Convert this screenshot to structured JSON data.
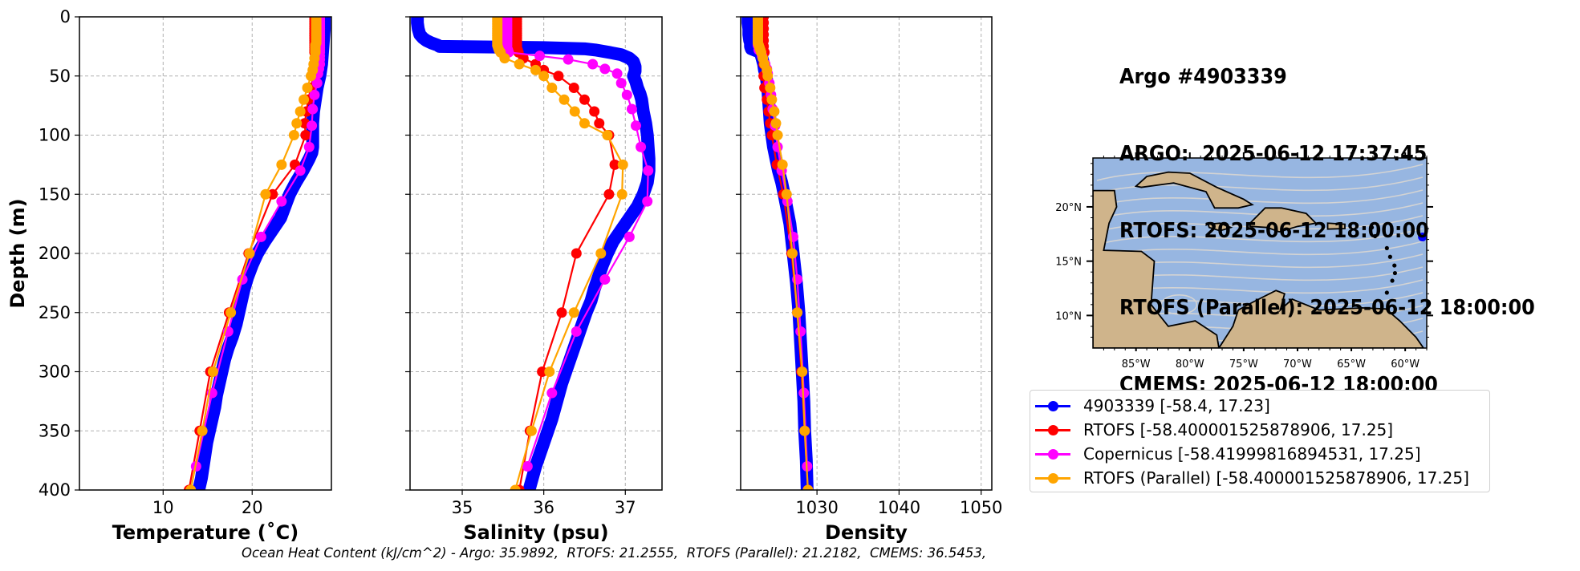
{
  "header": {
    "lines": [
      "Argo #4903339",
      "ARGO:  2025-06-12 17:37:45",
      "RTOFS: 2025-06-12 18:00:00",
      "RTOFS (Parallel): 2025-06-12 18:00:00",
      "CMEMS: 2025-06-12 18:00:00"
    ]
  },
  "footer": {
    "ohc_text": "Ocean Heat Content (kJ/cm^2) - Argo: 35.9892,  RTOFS: 21.2555,  RTOFS (Parallel): 21.2182,  CMEMS: 36.5453,"
  },
  "legend": {
    "items": [
      {
        "label": "4903339 [-58.4, 17.23]",
        "color": "#0000ff"
      },
      {
        "label": "RTOFS [-58.400001525878906, 17.25]",
        "color": "#ff0000"
      },
      {
        "label": "Copernicus [-58.41999816894531, 17.25]",
        "color": "#ff00ff"
      },
      {
        "label": "RTOFS (Parallel) [-58.400001525878906, 17.25]",
        "color": "#ffa500"
      }
    ]
  },
  "map": {
    "lat_ticks": [
      "20°N",
      "15°N",
      "10°N"
    ],
    "lat_values": [
      20,
      15,
      10
    ],
    "lon_ticks": [
      "85°W",
      "80°W",
      "75°W",
      "70°W",
      "65°W",
      "60°W"
    ],
    "lon_values": [
      -85,
      -80,
      -75,
      -70,
      -65,
      -60
    ],
    "lon_range": [
      -89,
      -58
    ],
    "lat_range": [
      7,
      24.5
    ],
    "float_position": {
      "lon": -58.4,
      "lat": 17.23
    },
    "colors": {
      "ocean": "#97b6e1",
      "land": "#cfb48b",
      "stream": "#d3d3d3",
      "float": "#0000ff"
    }
  },
  "chart_data": [
    {
      "type": "line",
      "id": "temperature",
      "title": "",
      "xlabel": "Temperature (˚C)",
      "ylabel": "Depth (m)",
      "xlim": [
        0.6,
        28.9
      ],
      "ylim": [
        400,
        0
      ],
      "xticks": [
        10,
        20
      ],
      "yticks": [
        0,
        50,
        100,
        150,
        200,
        250,
        300,
        350,
        400
      ],
      "grid": true,
      "series": [
        {
          "name": "4903339",
          "color": "#0000ff",
          "dense": true,
          "depth": [
            0,
            10,
            20,
            30,
            40,
            50,
            60,
            70,
            80,
            90,
            100,
            110,
            115,
            120,
            130,
            140,
            150,
            160,
            170,
            180,
            190,
            200,
            210,
            220,
            230,
            240,
            250,
            260,
            270,
            280,
            290,
            300,
            310,
            320,
            330,
            340,
            350,
            360,
            370,
            380,
            390,
            400
          ],
          "values": [
            28.1,
            28.1,
            28.0,
            27.9,
            27.8,
            27.6,
            27.3,
            27.1,
            26.9,
            26.8,
            26.8,
            26.8,
            26.7,
            26.4,
            25.7,
            24.9,
            24.2,
            23.7,
            23.2,
            22.3,
            21.4,
            20.6,
            20.0,
            19.5,
            19.1,
            18.8,
            18.5,
            18.2,
            17.8,
            17.3,
            16.9,
            16.6,
            16.3,
            16.0,
            15.8,
            15.5,
            15.2,
            14.9,
            14.7,
            14.5,
            14.3,
            14.0
          ]
        },
        {
          "name": "RTOFS",
          "color": "#ff0000",
          "depth": [
            0,
            2,
            4,
            6,
            8,
            10,
            12,
            14,
            16,
            18,
            20,
            22,
            24,
            26,
            28,
            30,
            35,
            40,
            45,
            50,
            60,
            70,
            80,
            90,
            100,
            125,
            150,
            200,
            250,
            300,
            350,
            400
          ],
          "values": [
            27.0,
            27.0,
            27.0,
            27.0,
            27.0,
            27.0,
            27.0,
            27.0,
            27.0,
            27.0,
            27.0,
            27.0,
            27.0,
            27.0,
            27.0,
            27.0,
            27.1,
            27.1,
            27.0,
            26.9,
            26.6,
            26.3,
            26.1,
            25.9,
            26.0,
            24.8,
            22.3,
            19.6,
            17.4,
            15.3,
            14.1,
            12.9
          ]
        },
        {
          "name": "Copernicus",
          "color": "#ff00ff",
          "depth": [
            0,
            2,
            4,
            6,
            8,
            10,
            12,
            14,
            16,
            18,
            20,
            22,
            24,
            26,
            28,
            30,
            33,
            36,
            40,
            44,
            48,
            56,
            66,
            78,
            92,
            110,
            130,
            156,
            186,
            222,
            266,
            318,
            380
          ],
          "values": [
            27.6,
            27.6,
            27.6,
            27.6,
            27.6,
            27.6,
            27.6,
            27.6,
            27.6,
            27.6,
            27.6,
            27.6,
            27.6,
            27.6,
            27.6,
            27.6,
            27.6,
            27.6,
            27.6,
            27.5,
            27.4,
            27.3,
            27.0,
            26.8,
            26.7,
            26.4,
            25.4,
            23.3,
            21.0,
            18.9,
            17.3,
            15.5,
            13.7
          ]
        },
        {
          "name": "RTOFS (Parallel)",
          "color": "#ffa500",
          "depth": [
            0,
            2,
            4,
            6,
            8,
            10,
            12,
            14,
            16,
            18,
            20,
            22,
            24,
            26,
            28,
            30,
            35,
            40,
            45,
            50,
            60,
            70,
            80,
            90,
            100,
            125,
            150,
            200,
            250,
            300,
            350,
            400
          ],
          "values": [
            27.2,
            27.2,
            27.2,
            27.2,
            27.2,
            27.2,
            27.2,
            27.2,
            27.2,
            27.2,
            27.2,
            27.2,
            27.1,
            27.1,
            27.1,
            27.1,
            27.0,
            26.9,
            26.8,
            26.6,
            26.2,
            25.8,
            25.4,
            25.0,
            24.7,
            23.3,
            21.5,
            19.7,
            17.6,
            15.6,
            14.4,
            13.1
          ]
        }
      ]
    },
    {
      "type": "line",
      "id": "salinity",
      "title": "",
      "xlabel": "Salinity (psu)",
      "ylabel": "",
      "xlim": [
        34.36,
        37.45
      ],
      "ylim": [
        400,
        0
      ],
      "xticks": [
        35,
        36,
        37
      ],
      "yticks": [
        0,
        50,
        100,
        150,
        200,
        250,
        300,
        350,
        400
      ],
      "grid": true,
      "series": [
        {
          "name": "4903339",
          "color": "#0000ff",
          "dense": true,
          "depth": [
            0,
            5,
            10,
            15,
            18,
            20,
            22,
            24,
            25,
            26,
            27,
            28,
            30,
            32,
            35,
            38,
            42,
            46,
            50,
            55,
            60,
            65,
            70,
            80,
            90,
            100,
            110,
            120,
            130,
            140,
            150,
            160,
            170,
            180,
            190,
            200,
            210,
            220,
            230,
            240,
            250,
            260,
            270,
            280,
            290,
            300,
            310,
            320,
            330,
            340,
            350,
            360,
            370,
            380,
            390,
            400
          ],
          "values": [
            34.45,
            34.45,
            34.46,
            34.48,
            34.52,
            34.56,
            34.62,
            34.7,
            34.72,
            36.0,
            36.5,
            36.63,
            36.8,
            36.95,
            37.05,
            37.1,
            37.12,
            37.12,
            37.1,
            37.13,
            37.15,
            37.18,
            37.2,
            37.22,
            37.25,
            37.27,
            37.28,
            37.29,
            37.29,
            37.27,
            37.22,
            37.15,
            37.05,
            36.95,
            36.85,
            36.78,
            36.72,
            36.67,
            36.62,
            36.58,
            36.52,
            36.47,
            36.42,
            36.37,
            36.32,
            36.27,
            36.22,
            36.18,
            36.14,
            36.1,
            36.05,
            36.0,
            35.95,
            35.9,
            35.86,
            35.82
          ]
        },
        {
          "name": "RTOFS",
          "color": "#ff0000",
          "depth": [
            0,
            2,
            4,
            6,
            8,
            10,
            12,
            14,
            16,
            18,
            20,
            22,
            24,
            26,
            28,
            30,
            35,
            40,
            45,
            50,
            60,
            70,
            80,
            90,
            100,
            125,
            150,
            200,
            250,
            300,
            350,
            400
          ],
          "values": [
            35.67,
            35.67,
            35.67,
            35.67,
            35.67,
            35.67,
            35.67,
            35.67,
            35.67,
            35.67,
            35.67,
            35.67,
            35.67,
            35.67,
            35.68,
            35.69,
            35.75,
            35.9,
            36.0,
            36.18,
            36.37,
            36.5,
            36.62,
            36.68,
            36.8,
            36.87,
            36.8,
            36.4,
            36.22,
            35.98,
            35.83,
            35.7
          ]
        },
        {
          "name": "Copernicus",
          "color": "#ff00ff",
          "depth": [
            0,
            2,
            4,
            6,
            8,
            10,
            12,
            14,
            16,
            18,
            20,
            22,
            24,
            26,
            28,
            30,
            33,
            36,
            40,
            44,
            48,
            56,
            66,
            78,
            92,
            110,
            130,
            156,
            186,
            222,
            266,
            318,
            380
          ],
          "values": [
            35.55,
            35.55,
            35.55,
            35.55,
            35.55,
            35.55,
            35.55,
            35.55,
            35.55,
            35.55,
            35.55,
            35.55,
            35.55,
            35.55,
            35.56,
            35.57,
            35.95,
            36.3,
            36.6,
            36.75,
            36.9,
            36.95,
            37.02,
            37.08,
            37.13,
            37.19,
            37.28,
            37.27,
            37.05,
            36.75,
            36.4,
            36.1,
            35.8
          ]
        },
        {
          "name": "RTOFS (Parallel)",
          "color": "#ffa500",
          "depth": [
            0,
            2,
            4,
            6,
            8,
            10,
            12,
            14,
            16,
            18,
            20,
            22,
            24,
            26,
            28,
            30,
            35,
            40,
            45,
            50,
            60,
            70,
            80,
            90,
            100,
            125,
            150,
            200,
            250,
            300,
            350,
            400
          ],
          "values": [
            35.43,
            35.43,
            35.43,
            35.43,
            35.43,
            35.43,
            35.43,
            35.43,
            35.43,
            35.43,
            35.43,
            35.43,
            35.43,
            35.44,
            35.45,
            35.47,
            35.52,
            35.7,
            35.9,
            36.0,
            36.1,
            36.25,
            36.38,
            36.5,
            36.78,
            36.97,
            36.96,
            36.7,
            36.37,
            36.07,
            35.85,
            35.65
          ]
        }
      ]
    },
    {
      "type": "line",
      "id": "density",
      "title": "",
      "xlabel": "Density",
      "ylabel": "",
      "xlim": [
        1020.7,
        1051.3
      ],
      "ylim": [
        400,
        0
      ],
      "xticks": [
        1030,
        1040,
        1050
      ],
      "yticks": [
        0,
        50,
        100,
        150,
        200,
        250,
        300,
        350,
        400
      ],
      "grid": true,
      "series": [
        {
          "name": "4903339",
          "color": "#0000ff",
          "dense": true,
          "depth": [
            0,
            5,
            10,
            15,
            20,
            22,
            25,
            27,
            30,
            35,
            40,
            45,
            50,
            60,
            70,
            80,
            90,
            100,
            110,
            120,
            130,
            140,
            150,
            175,
            200,
            225,
            250,
            275,
            300,
            325,
            350,
            375,
            400
          ],
          "values": [
            1021.6,
            1021.6,
            1021.7,
            1021.7,
            1021.8,
            1021.9,
            1021.9,
            1022.0,
            1023.1,
            1023.3,
            1023.5,
            1023.6,
            1023.8,
            1024.0,
            1024.1,
            1024.2,
            1024.3,
            1024.5,
            1024.7,
            1025.0,
            1025.3,
            1025.7,
            1026.0,
            1026.7,
            1027.1,
            1027.5,
            1027.8,
            1028.0,
            1028.2,
            1028.4,
            1028.5,
            1028.7,
            1028.8
          ]
        },
        {
          "name": "RTOFS",
          "color": "#ff0000",
          "depth": [
            0,
            5,
            10,
            15,
            20,
            25,
            30,
            40,
            50,
            60,
            70,
            80,
            90,
            100,
            125,
            150,
            200,
            250,
            300,
            350,
            400
          ],
          "values": [
            1023.5,
            1023.5,
            1023.5,
            1023.5,
            1023.5,
            1023.5,
            1023.6,
            1023.5,
            1023.5,
            1023.6,
            1023.9,
            1024.1,
            1024.3,
            1024.5,
            1025.1,
            1025.9,
            1026.9,
            1027.6,
            1028.1,
            1028.5,
            1028.9
          ]
        },
        {
          "name": "Copernicus",
          "color": "#ff00ff",
          "depth": [
            0,
            4,
            8,
            12,
            16,
            20,
            24,
            28,
            33,
            40,
            44,
            48,
            56,
            66,
            78,
            92,
            110,
            130,
            156,
            186,
            222,
            266,
            318,
            380
          ],
          "values": [
            1022.8,
            1022.8,
            1022.8,
            1022.8,
            1022.8,
            1022.8,
            1022.8,
            1022.9,
            1023.3,
            1023.7,
            1023.9,
            1024.0,
            1024.2,
            1024.4,
            1024.6,
            1024.9,
            1025.2,
            1025.7,
            1026.4,
            1027.1,
            1027.6,
            1028.0,
            1028.4,
            1028.8
          ]
        },
        {
          "name": "RTOFS (Parallel)",
          "color": "#ffa500",
          "depth": [
            0,
            2,
            4,
            6,
            8,
            10,
            12,
            14,
            16,
            18,
            20,
            22,
            24,
            26,
            28,
            30,
            35,
            40,
            45,
            50,
            60,
            70,
            80,
            90,
            100,
            125,
            150,
            200,
            250,
            300,
            350,
            400
          ],
          "values": [
            1022.8,
            1022.8,
            1022.8,
            1022.8,
            1022.8,
            1022.8,
            1022.8,
            1022.8,
            1022.8,
            1022.8,
            1022.8,
            1022.8,
            1022.9,
            1023.0,
            1023.1,
            1023.2,
            1023.4,
            1023.6,
            1023.9,
            1024.0,
            1024.3,
            1024.5,
            1024.8,
            1025.0,
            1025.2,
            1025.8,
            1026.3,
            1027.0,
            1027.6,
            1028.2,
            1028.5,
            1028.9
          ]
        }
      ]
    }
  ]
}
